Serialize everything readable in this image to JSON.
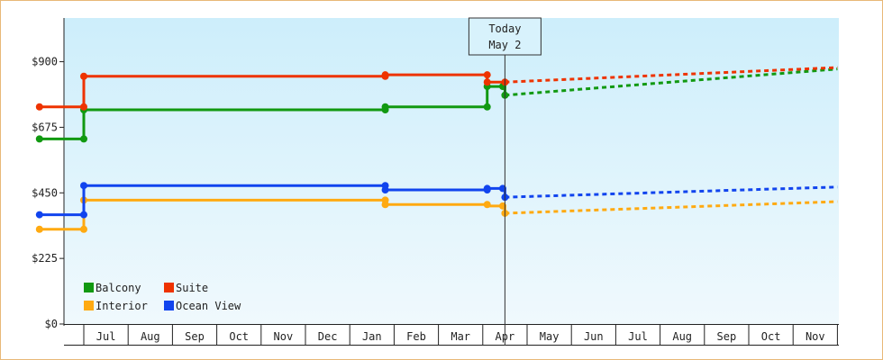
{
  "chart_data": {
    "type": "line",
    "title": "",
    "xlabel": "",
    "ylabel": "",
    "ylim": [
      0,
      1050
    ],
    "y_ticks": [
      {
        "value": 0,
        "label": "$0"
      },
      {
        "value": 225,
        "label": "$225"
      },
      {
        "value": 450,
        "label": "$450"
      },
      {
        "value": 675,
        "label": "$675"
      },
      {
        "value": 900,
        "label": "$900"
      }
    ],
    "x_range": [
      -0.5,
      16.7
    ],
    "x_ticks": [
      {
        "value": 1,
        "label": "Jul"
      },
      {
        "value": 2,
        "label": "Aug"
      },
      {
        "value": 3,
        "label": "Sep"
      },
      {
        "value": 4,
        "label": "Oct"
      },
      {
        "value": 5,
        "label": "Nov"
      },
      {
        "value": 6,
        "label": "Dec"
      },
      {
        "value": 7,
        "label": "Jan"
      },
      {
        "value": 8,
        "label": "Feb"
      },
      {
        "value": 9,
        "label": "Mar"
      },
      {
        "value": 10,
        "label": "Apr"
      },
      {
        "value": 11,
        "label": "May"
      },
      {
        "value": 12,
        "label": "Jun"
      },
      {
        "value": 13,
        "label": "Jul"
      },
      {
        "value": 14,
        "label": "Aug"
      },
      {
        "value": 15,
        "label": "Sep"
      },
      {
        "value": 16,
        "label": "Oct"
      },
      {
        "value": 17,
        "label": "Nov"
      }
    ],
    "today": {
      "x": 10.0,
      "line1": "Today",
      "line2": "May 2"
    },
    "grid": false,
    "legend_position": "bottom-left",
    "series": [
      {
        "name": "Balcony",
        "color": "#119911",
        "points": [
          [
            -0.5,
            635
          ],
          [
            0.5,
            635
          ],
          [
            0.5,
            735
          ],
          [
            7.3,
            735
          ],
          [
            7.3,
            745
          ],
          [
            9.6,
            745
          ],
          [
            9.6,
            815
          ],
          [
            10.0,
            815
          ],
          [
            10.0,
            785
          ]
        ],
        "markers": [
          [
            -0.5,
            635
          ],
          [
            0.5,
            635
          ],
          [
            0.5,
            735
          ],
          [
            7.3,
            735
          ],
          [
            7.3,
            745
          ],
          [
            9.6,
            745
          ],
          [
            9.6,
            815
          ],
          [
            9.95,
            815
          ],
          [
            10.0,
            785
          ]
        ],
        "forecast": [
          [
            10.0,
            785
          ],
          [
            17.5,
            875
          ]
        ]
      },
      {
        "name": "Suite",
        "color": "#ee3300",
        "points": [
          [
            -0.5,
            745
          ],
          [
            0.5,
            745
          ],
          [
            0.5,
            850
          ],
          [
            7.3,
            850
          ],
          [
            7.3,
            855
          ],
          [
            9.6,
            855
          ],
          [
            9.6,
            830
          ],
          [
            10.0,
            830
          ]
        ],
        "markers": [
          [
            -0.5,
            745
          ],
          [
            0.5,
            745
          ],
          [
            0.5,
            850
          ],
          [
            7.3,
            850
          ],
          [
            7.3,
            855
          ],
          [
            9.6,
            855
          ],
          [
            9.6,
            830
          ],
          [
            10.0,
            830
          ]
        ],
        "forecast": [
          [
            10.0,
            830
          ],
          [
            17.5,
            880
          ]
        ]
      },
      {
        "name": "Interior",
        "color": "#ffaa11",
        "points": [
          [
            -0.5,
            325
          ],
          [
            0.5,
            325
          ],
          [
            0.5,
            425
          ],
          [
            7.3,
            425
          ],
          [
            7.3,
            410
          ],
          [
            9.6,
            410
          ],
          [
            9.6,
            405
          ],
          [
            10.0,
            405
          ],
          [
            10.0,
            380
          ]
        ],
        "markers": [
          [
            -0.5,
            325
          ],
          [
            0.5,
            325
          ],
          [
            0.5,
            425
          ],
          [
            7.3,
            425
          ],
          [
            7.3,
            410
          ],
          [
            9.6,
            410
          ],
          [
            9.95,
            405
          ],
          [
            10.0,
            380
          ]
        ],
        "forecast": [
          [
            10.0,
            380
          ],
          [
            17.5,
            420
          ]
        ]
      },
      {
        "name": "Ocean View",
        "color": "#1144ee",
        "points": [
          [
            -0.5,
            375
          ],
          [
            0.5,
            375
          ],
          [
            0.5,
            475
          ],
          [
            7.3,
            475
          ],
          [
            7.3,
            460
          ],
          [
            9.6,
            460
          ],
          [
            9.6,
            465
          ],
          [
            10.0,
            465
          ],
          [
            10.0,
            435
          ]
        ],
        "markers": [
          [
            -0.5,
            375
          ],
          [
            0.5,
            375
          ],
          [
            0.5,
            475
          ],
          [
            7.3,
            475
          ],
          [
            7.3,
            460
          ],
          [
            9.6,
            460
          ],
          [
            9.6,
            465
          ],
          [
            9.95,
            465
          ],
          [
            10.0,
            435
          ]
        ],
        "forecast": [
          [
            10.0,
            435
          ],
          [
            17.5,
            470
          ]
        ]
      }
    ],
    "legend": [
      {
        "label": "Balcony",
        "color": "#119911"
      },
      {
        "label": "Suite",
        "color": "#ee3300"
      },
      {
        "label": "Interior",
        "color": "#ffaa11"
      },
      {
        "label": "Ocean View",
        "color": "#1144ee"
      }
    ]
  }
}
